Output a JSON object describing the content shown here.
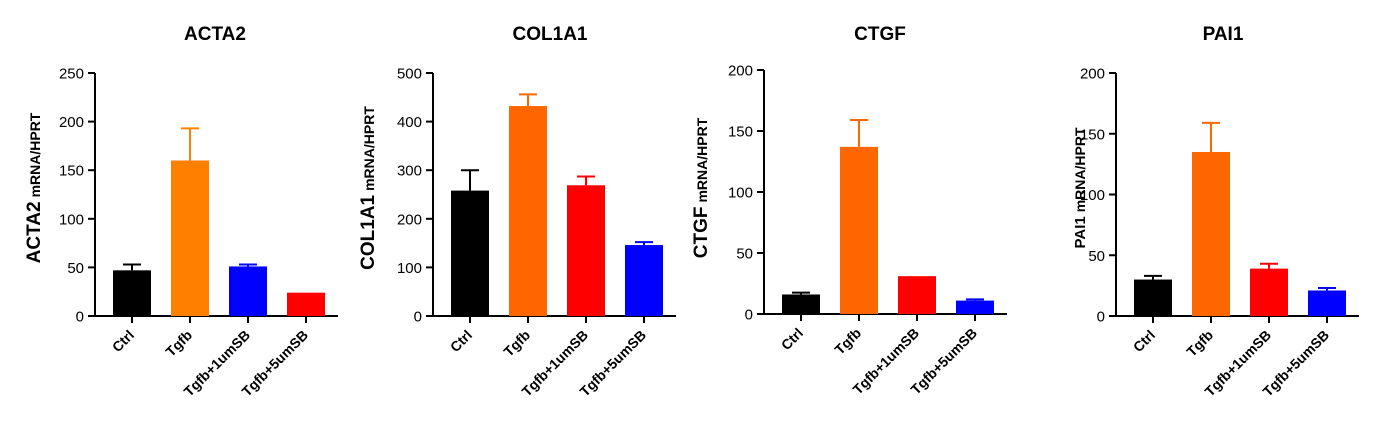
{
  "chart_data": [
    {
      "type": "bar",
      "title": "ACTA2",
      "ylabel_main": "ACTA2",
      "ylabel_sub": "mRNA/HPRT",
      "categories": [
        "Ctrl",
        "Tgfb",
        "Tgfb+1umSB",
        "Tgfb+5umSB"
      ],
      "values": [
        47,
        160,
        51,
        24
      ],
      "errors": [
        6,
        33,
        2,
        0
      ],
      "colors": [
        "#000000",
        "#FF8000",
        "#0000FF",
        "#FF0000"
      ],
      "ylim": [
        0,
        250
      ],
      "yticks": [
        0,
        50,
        100,
        150,
        200,
        250
      ]
    },
    {
      "type": "bar",
      "title": "COL1A1",
      "ylabel_main": "COL1A1",
      "ylabel_sub": "mRNA/HPRT",
      "categories": [
        "Ctrl",
        "Tgfb",
        "Tgfb+1umSB",
        "Tgfb+5umSB"
      ],
      "values": [
        258,
        432,
        269,
        146
      ],
      "errors": [
        42,
        24,
        18,
        6
      ],
      "colors": [
        "#000000",
        "#FF6600",
        "#FF0000",
        "#0000FF"
      ],
      "ylim": [
        0,
        500
      ],
      "yticks": [
        0,
        100,
        200,
        300,
        400,
        500
      ]
    },
    {
      "type": "bar",
      "title": "CTGF",
      "ylabel_main": "CTGF",
      "ylabel_sub": "mRNA/HPRT",
      "categories": [
        "Ctrl",
        "Tgfb",
        "Tgfb+1umSB",
        "Tgfb+5umSB"
      ],
      "values": [
        16,
        137,
        31,
        11
      ],
      "errors": [
        1.5,
        22,
        0,
        1
      ],
      "colors": [
        "#000000",
        "#FF6600",
        "#FF0000",
        "#0000FF"
      ],
      "ylim": [
        0,
        200
      ],
      "yticks": [
        0,
        50,
        100,
        150,
        200
      ]
    },
    {
      "type": "bar",
      "title": "PAI1",
      "ylabel_main": "PAI1",
      "ylabel_sub": "mRNA/HPRT",
      "categories": [
        "Ctrl",
        "Tgfb",
        "Tgfb+1umSB",
        "Tgfb+5umSB"
      ],
      "values": [
        30,
        135,
        39,
        21
      ],
      "errors": [
        3,
        24,
        4,
        2
      ],
      "colors": [
        "#000000",
        "#FF6600",
        "#FF0000",
        "#0000FF"
      ],
      "ylim": [
        0,
        200
      ],
      "yticks": [
        0,
        50,
        100,
        150,
        200
      ]
    }
  ]
}
